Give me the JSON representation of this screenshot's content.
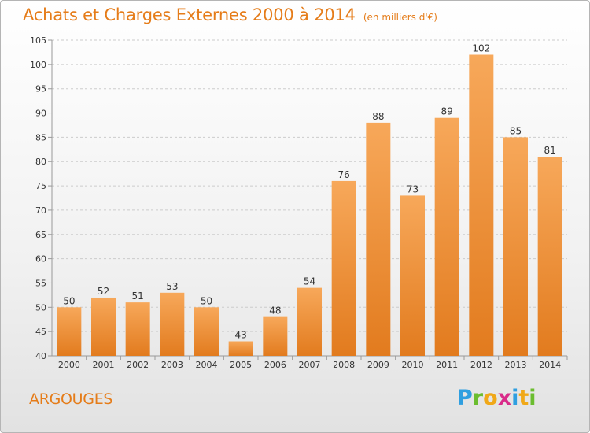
{
  "header": {
    "title": "Achats et Charges Externes 2000 à 2014",
    "unit": "(en milliers d'€)"
  },
  "footer": {
    "place": "ARGOUGES",
    "logo_letters": [
      "P",
      "r",
      "o",
      "x",
      "i",
      "t",
      "i"
    ]
  },
  "colors": {
    "accent": "#e57c19",
    "bar_top": "#f7a85a",
    "bar_bottom": "#e27b1e",
    "grid": "#cccccc"
  },
  "chart_data": {
    "type": "bar",
    "title": "Achats et Charges Externes 2000 à 2014",
    "subtitle": "(en milliers d'€)",
    "xlabel": "",
    "ylabel": "",
    "categories": [
      "2000",
      "2001",
      "2002",
      "2003",
      "2004",
      "2005",
      "2006",
      "2007",
      "2008",
      "2009",
      "2010",
      "2011",
      "2012",
      "2013",
      "2014"
    ],
    "values": [
      50,
      52,
      51,
      53,
      50,
      43,
      48,
      54,
      76,
      88,
      73,
      89,
      102,
      85,
      81
    ],
    "ylim": [
      40,
      105
    ],
    "yticks": [
      40,
      45,
      50,
      55,
      60,
      65,
      70,
      75,
      80,
      85,
      90,
      95,
      100,
      105
    ],
    "grid": "horizontal dashed",
    "legend": "none"
  }
}
